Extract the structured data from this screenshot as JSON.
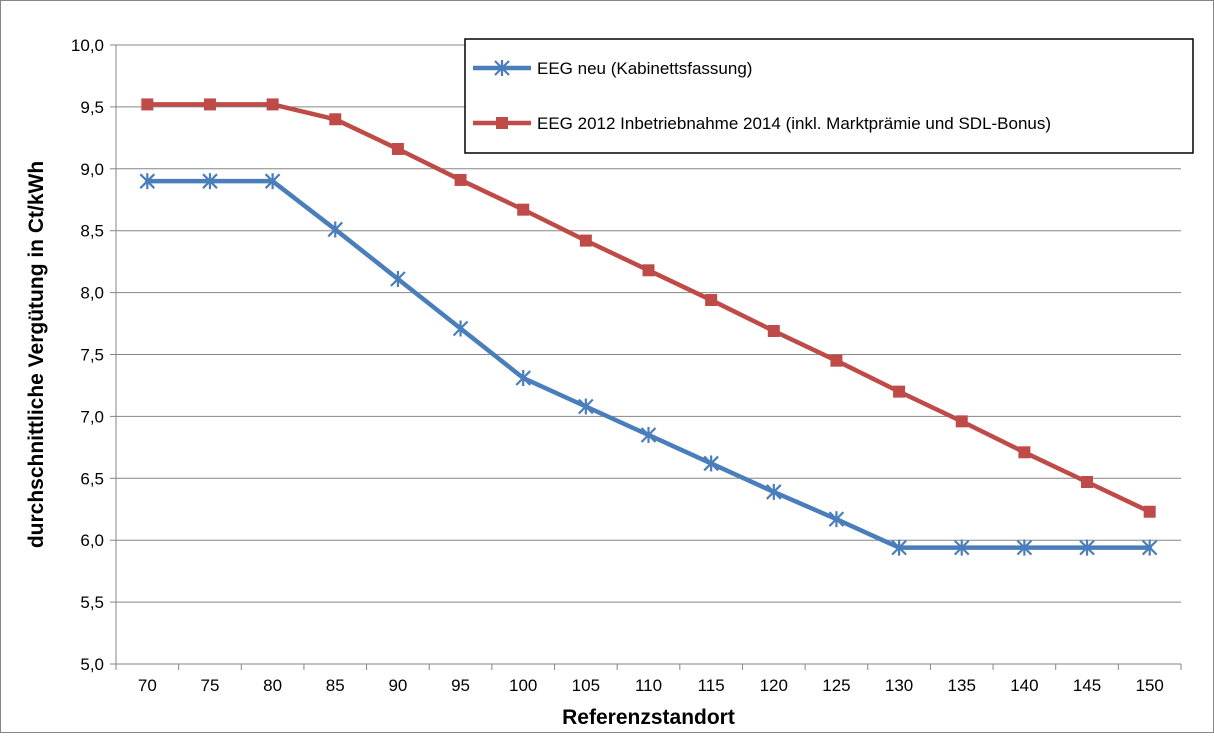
{
  "chart_data": {
    "type": "line",
    "title": "",
    "xlabel": "Referenzstandort",
    "ylabel": "durchschnittliche Vergütung in Ct/kWh",
    "categories": [
      "70",
      "75",
      "80",
      "85",
      "90",
      "95",
      "100",
      "105",
      "110",
      "115",
      "120",
      "125",
      "130",
      "135",
      "140",
      "145",
      "150"
    ],
    "y_ticks": [
      "5,0",
      "5,5",
      "6,0",
      "6,5",
      "7,0",
      "7,5",
      "8,0",
      "8,5",
      "9,0",
      "9,5",
      "10,0"
    ],
    "ylim": [
      5.0,
      10.0
    ],
    "grid": "horizontal",
    "legend_position": "top-right",
    "series": [
      {
        "name": "EEG neu (Kabinettsfassung)",
        "color": "#4a7ebb",
        "marker": "star",
        "values": [
          8.9,
          8.9,
          8.9,
          8.51,
          8.11,
          7.71,
          7.31,
          7.08,
          6.85,
          6.62,
          6.39,
          6.17,
          5.94,
          5.94,
          5.94,
          5.94,
          5.94
        ]
      },
      {
        "name": "EEG 2012 Inbetriebnahme 2014 (inkl. Marktprämie und SDL-Bonus)",
        "color": "#be4b48",
        "marker": "square",
        "values": [
          9.52,
          9.52,
          9.52,
          9.4,
          9.16,
          8.91,
          8.67,
          8.42,
          8.18,
          7.94,
          7.69,
          7.45,
          7.2,
          6.96,
          6.71,
          6.47,
          6.23
        ]
      }
    ]
  }
}
